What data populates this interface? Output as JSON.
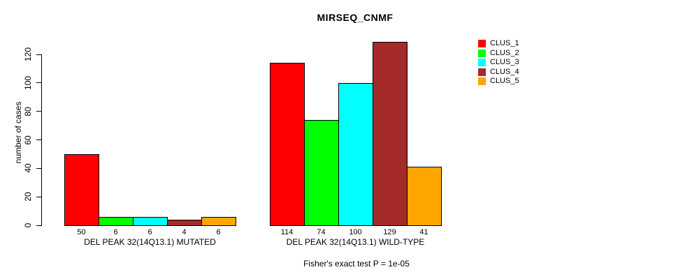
{
  "chart_data": {
    "type": "bar",
    "title": "MIRSEQ_CNMF",
    "xlabel": "",
    "ylabel": "number of cases",
    "ylim": [
      0,
      120
    ],
    "yticks": [
      0,
      20,
      40,
      60,
      80,
      100,
      120
    ],
    "grid": false,
    "legend_position": "right",
    "series": [
      {
        "name": "CLUS_1",
        "color": "#FF0000"
      },
      {
        "name": "CLUS_2",
        "color": "#00FF00"
      },
      {
        "name": "CLUS_3",
        "color": "#00FFFF"
      },
      {
        "name": "CLUS_4",
        "color": "#A52A2A"
      },
      {
        "name": "CLUS_5",
        "color": "#FFA500"
      }
    ],
    "groups": [
      {
        "label": "DEL PEAK 32(14Q13.1) MUTATED",
        "values": [
          50,
          6,
          6,
          4,
          6
        ]
      },
      {
        "label": "DEL PEAK 32(14Q13.1) WILD-TYPE",
        "values": [
          114,
          74,
          100,
          129,
          41
        ]
      }
    ],
    "footnote": "Fisher's exact test P = 1e-05"
  }
}
